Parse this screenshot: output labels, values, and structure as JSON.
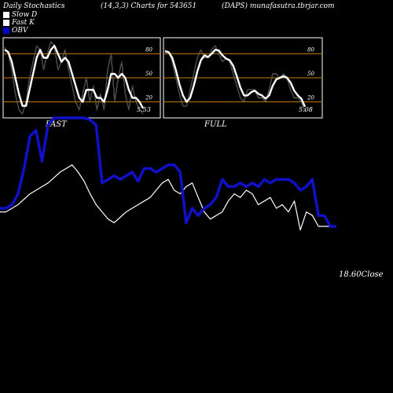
{
  "header": {
    "left": "Daily Stochastics",
    "center": "(14,3,3) Charts for 543651",
    "right": "(DAPS) munafasutra.tbrjar.com"
  },
  "legend": [
    {
      "label": "Slow  D",
      "color": "#ffffff"
    },
    {
      "label": "Fast K",
      "color": "#ffffff"
    },
    {
      "label": "OBV",
      "color": "#0000cc"
    }
  ],
  "colors": {
    "background": "#000000",
    "panel_line": "#ffffff",
    "level_line": "#cc7a00",
    "obv": "#1010c8",
    "price": "#ffffff"
  },
  "chart_data": [
    {
      "type": "line",
      "title": "FAST",
      "levels": [
        80,
        50,
        20
      ],
      "ylim": [
        0,
        100
      ],
      "last_value_label": "5.53",
      "series": [
        {
          "name": "Fast K",
          "values": [
            88,
            80,
            60,
            30,
            10,
            5,
            20,
            50,
            70,
            90,
            85,
            60,
            80,
            95,
            90,
            60,
            70,
            85,
            60,
            40,
            20,
            10,
            30,
            50,
            20,
            40,
            10,
            30,
            10,
            60,
            80,
            20,
            50,
            70,
            30,
            10,
            40,
            20,
            10,
            5
          ]
        },
        {
          "name": "Slow  D",
          "values": [
            85,
            82,
            70,
            50,
            30,
            15,
            15,
            35,
            55,
            75,
            85,
            75,
            75,
            85,
            90,
            80,
            70,
            75,
            70,
            55,
            40,
            25,
            20,
            35,
            35,
            35,
            25,
            25,
            20,
            35,
            55,
            55,
            50,
            55,
            50,
            35,
            25,
            25,
            20,
            12
          ]
        }
      ]
    },
    {
      "type": "line",
      "title": "FULL",
      "levels": [
        80,
        50,
        20
      ],
      "ylim": [
        0,
        100
      ],
      "last_value_label": "5.08",
      "series": [
        {
          "name": "Fast K",
          "values": [
            85,
            82,
            70,
            50,
            30,
            15,
            15,
            35,
            55,
            75,
            85,
            75,
            75,
            85,
            90,
            80,
            70,
            75,
            70,
            55,
            40,
            25,
            20,
            35,
            35,
            35,
            25,
            25,
            20,
            35,
            55,
            55,
            50,
            55,
            50,
            35,
            25,
            25,
            20,
            8
          ]
        },
        {
          "name": "Slow  D",
          "values": [
            83,
            82,
            75,
            60,
            42,
            28,
            20,
            25,
            40,
            58,
            72,
            78,
            76,
            80,
            85,
            84,
            78,
            74,
            72,
            65,
            52,
            38,
            28,
            28,
            32,
            34,
            30,
            28,
            24,
            28,
            40,
            48,
            50,
            52,
            50,
            44,
            34,
            28,
            24,
            14
          ]
        }
      ]
    },
    {
      "type": "line",
      "last_value_label": "18.60Close",
      "series": [
        {
          "name": "OBV",
          "values": [
            50,
            50,
            52,
            58,
            72,
            90,
            93,
            76,
            96,
            100,
            100,
            100,
            100,
            100,
            100,
            99,
            96,
            64,
            66,
            68,
            66,
            68,
            70,
            65,
            72,
            72,
            70,
            72,
            74,
            74,
            70,
            42,
            50,
            46,
            50,
            52,
            56,
            66,
            62,
            62,
            64,
            62,
            64,
            62,
            66,
            64,
            66,
            66,
            66,
            64,
            60,
            62,
            66,
            46,
            46,
            40,
            40
          ]
        },
        {
          "name": "Price",
          "values": [
            48,
            48,
            50,
            52,
            55,
            58,
            60,
            62,
            64,
            67,
            70,
            72,
            74,
            70,
            65,
            58,
            52,
            48,
            44,
            42,
            45,
            48,
            50,
            52,
            54,
            56,
            60,
            64,
            66,
            60,
            58,
            62,
            64,
            56,
            48,
            44,
            46,
            48,
            54,
            58,
            56,
            60,
            58,
            52,
            54,
            56,
            50,
            52,
            48,
            54,
            38,
            48,
            46,
            40,
            40,
            40,
            40
          ]
        }
      ]
    }
  ]
}
